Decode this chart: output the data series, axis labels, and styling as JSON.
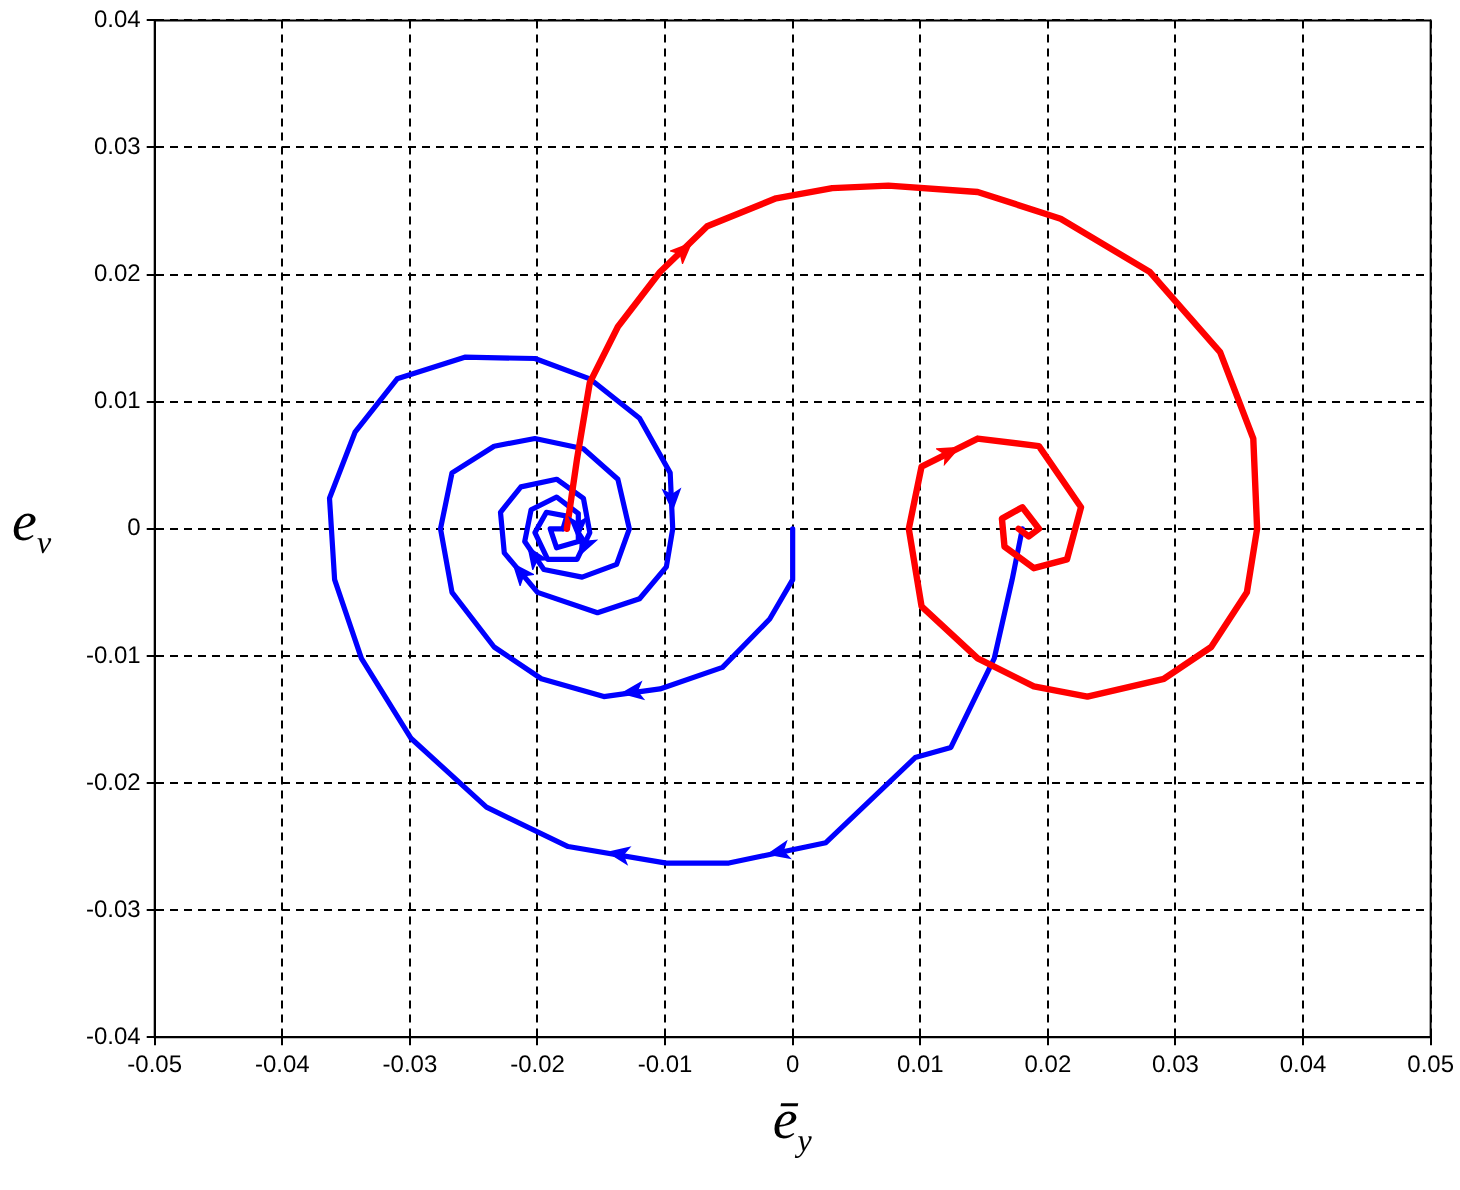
{
  "chart_data": {
    "type": "line",
    "xlabel": "ē$_{y}$",
    "ylabel": "e$_{v}$",
    "marker": "none",
    "line_style": "solid",
    "grid": true,
    "xlim": [
      -0.05,
      0.05
    ],
    "xticks": [
      -0.05,
      -0.04,
      -0.03,
      -0.02,
      -0.01,
      0,
      0.01,
      0.02,
      0.03,
      0.04,
      0.05
    ],
    "ylim": [
      -0.04,
      0.04
    ],
    "yticks": [
      -0.04,
      -0.03,
      -0.02,
      -0.01,
      0,
      0.01,
      0.02,
      0.03,
      0.04
    ],
    "series": [
      {
        "color": "#ff0000",
        "x": [
          -0.0177,
          -0.0169,
          -0.0159,
          -0.0137,
          -0.0104,
          -0.0067,
          -0.0013,
          0.0031,
          0.0075,
          0.0145,
          0.021,
          0.028,
          0.0335,
          0.0361,
          0.0364,
          0.0356,
          0.0328,
          0.0291,
          0.0231,
          0.0189,
          0.0145,
          0.0101,
          0.0091,
          0.0101,
          0.0145,
          0.0193,
          0.0226,
          0.0215,
          0.0189,
          0.0166,
          0.0164,
          0.018,
          0.0193,
          0.0185,
          0.0177
        ],
        "values": [
          0,
          0.0055,
          0.0115,
          0.0159,
          0.0202,
          0.0238,
          0.026,
          0.0268,
          0.027,
          0.0265,
          0.0244,
          0.0202,
          0.0139,
          0.0071,
          0,
          -0.005,
          -0.0093,
          -0.0118,
          -0.0132,
          -0.0124,
          -0.0102,
          -0.0061,
          0,
          0.0049,
          0.0071,
          0.0065,
          0.0017,
          -0.0024,
          -0.0031,
          -0.0014,
          0.0008,
          0.0017,
          0,
          -0.0006,
          0
        ]
      },
      {
        "color": "#0000ff",
        "x": [
          0,
          0,
          -0.0018,
          -0.0055,
          -0.0104,
          -0.0148,
          -0.0197,
          -0.0234,
          -0.0267,
          -0.0276,
          -0.0267,
          -0.0234,
          -0.0202,
          -0.0164,
          -0.0137,
          -0.0128,
          -0.0138,
          -0.0165,
          -0.0195,
          -0.021,
          -0.0205,
          -0.0185,
          -0.0168,
          -0.0168,
          -0.0185,
          -0.019,
          -0.018
        ],
        "values": [
          0,
          -0.004,
          -0.0071,
          -0.0109,
          -0.0126,
          -0.0132,
          -0.0118,
          -0.0093,
          -0.005,
          0,
          0.0044,
          0.0065,
          0.0071,
          0.0063,
          0.0039,
          0,
          -0.0028,
          -0.0038,
          -0.0032,
          -0.001,
          0.0015,
          0.0025,
          0.0012,
          -0.001,
          -0.0015,
          0,
          0
        ]
      },
      {
        "color": "#0000ff",
        "x": [
          0.018,
          0.0172,
          0.0158,
          0.0124,
          0.0096,
          0.0026,
          -0.005,
          -0.0099,
          -0.0176,
          -0.024,
          -0.0299,
          -0.0338,
          -0.0359,
          -0.0363,
          -0.0343,
          -0.031,
          -0.0257,
          -0.0202,
          -0.0159,
          -0.012,
          -0.0096,
          -0.0094,
          -0.0099,
          -0.012,
          -0.0153,
          -0.02,
          -0.0226,
          -0.0229,
          -0.0213,
          -0.0185,
          -0.0164,
          -0.0159,
          -0.0169,
          -0.0192,
          -0.0202,
          -0.0193,
          -0.0177,
          -0.018
        ],
        "values": [
          0,
          -0.004,
          -0.0102,
          -0.0172,
          -0.018,
          -0.0247,
          -0.0263,
          -0.0263,
          -0.025,
          -0.0219,
          -0.0165,
          -0.0102,
          -0.004,
          0.0024,
          0.0076,
          0.0118,
          0.0135,
          0.0134,
          0.0118,
          0.0087,
          0.0044,
          0,
          -0.003,
          -0.0055,
          -0.0066,
          -0.005,
          -0.0019,
          0.0013,
          0.0033,
          0.0039,
          0.0024,
          -0.0003,
          -0.0024,
          -0.0024,
          -0.0003,
          0.0013,
          0.001,
          0
        ]
      }
    ]
  }
}
